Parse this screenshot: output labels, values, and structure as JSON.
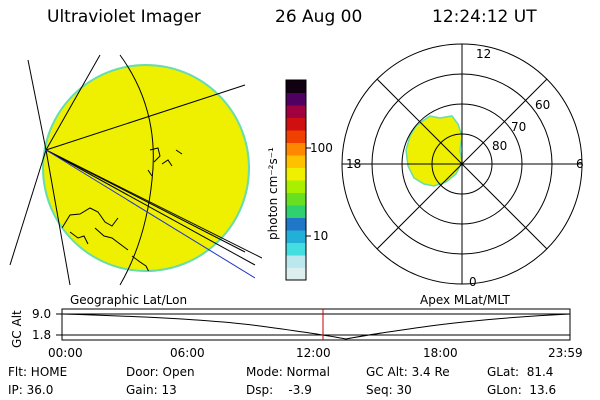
{
  "header": {
    "instrument": "Ultraviolet Imager",
    "date": "26 Aug 00",
    "time": "12:24:12 UT"
  },
  "colorbar": {
    "unit_label": "photon cm⁻²s⁻¹",
    "tick_high": "100",
    "tick_low": "10",
    "colors": [
      "#ddeeee",
      "#bbe8ee",
      "#44dde0",
      "#22b0d8",
      "#2077c8",
      "#30d070",
      "#66e020",
      "#a8f000",
      "#eef000",
      "#ffc000",
      "#ff8800",
      "#f04000",
      "#d01010",
      "#a00040",
      "#500060",
      "#100010"
    ]
  },
  "geo_panel": {
    "label": "Geographic Lat/Lon",
    "disk_color": "#eef000",
    "disk_edge_color": "#66ddaa"
  },
  "polar_panel": {
    "label": "Apex MLat/MLT",
    "mlt_top": "12",
    "mlt_left": "18",
    "mlt_right": "6",
    "mlt_bottom": "0",
    "lat_60": "60",
    "lat_70": "70",
    "lat_80": "80",
    "blob_color": "#eef000"
  },
  "altitude_plot": {
    "axis_label": "GC Alt",
    "y_top": "9.0",
    "y_bottom": "1.8",
    "x_ticks": [
      "00:00",
      "06:00",
      "12:00",
      "18:00",
      "23:59"
    ],
    "current_marker_color": "#cc0000"
  },
  "status": {
    "flt": "Flt: HOME",
    "ip": "IP: 36.0",
    "door": "Door: Open",
    "gain": "Gain: 13",
    "mode": "Mode: Normal",
    "dsp": "Dsp:    -3.9",
    "gc_alt": "GC Alt: 3.4 Re",
    "seq": "Seq: 30",
    "glat": "GLat:  81.4",
    "glon": "GLon:  13.6"
  }
}
